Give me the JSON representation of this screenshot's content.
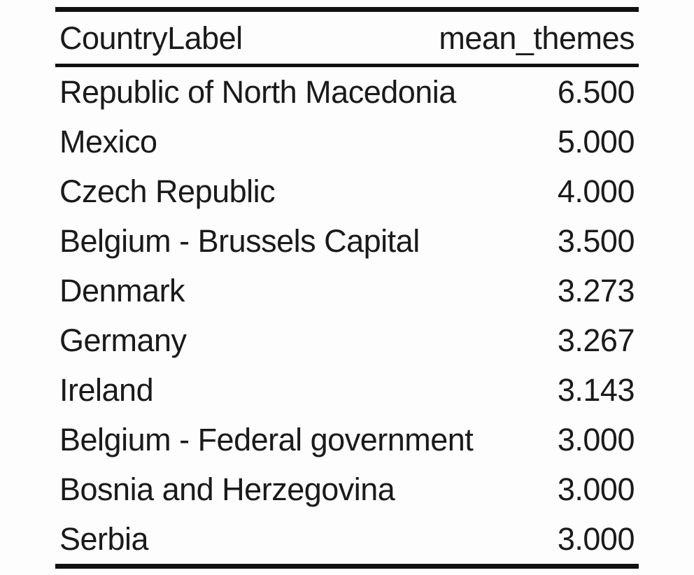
{
  "chart_data": {
    "type": "table",
    "columns": [
      "CountryLabel",
      "mean_themes"
    ],
    "rows": [
      {
        "label": "Republic of North Macedonia",
        "value": "6.500"
      },
      {
        "label": "Mexico",
        "value": "5.000"
      },
      {
        "label": "Czech Republic",
        "value": "4.000"
      },
      {
        "label": "Belgium - Brussels Capital",
        "value": "3.500"
      },
      {
        "label": "Denmark",
        "value": "3.273"
      },
      {
        "label": "Germany",
        "value": "3.267"
      },
      {
        "label": "Ireland",
        "value": "3.143"
      },
      {
        "label": "Belgium - Federal government",
        "value": "3.000"
      },
      {
        "label": "Bosnia and Herzegovina",
        "value": "3.000"
      },
      {
        "label": "Serbia",
        "value": "3.000"
      }
    ]
  }
}
